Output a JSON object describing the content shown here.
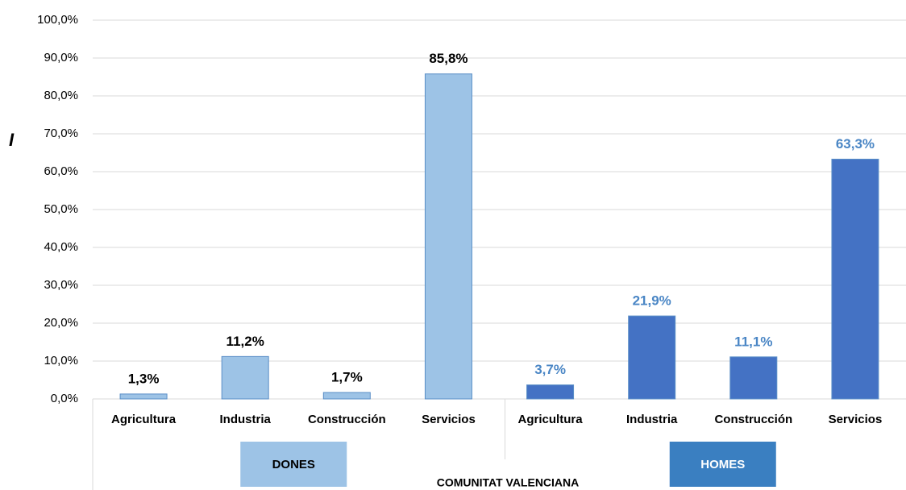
{
  "chart_data": {
    "type": "grouped_bar",
    "ylabel": "I",
    "xlabel": "COMUNITAT VALENCIANA",
    "ylim": [
      0,
      100
    ],
    "yticks": [
      {
        "value": 0,
        "label": "0,0%"
      },
      {
        "value": 10,
        "label": "10,0%"
      },
      {
        "value": 20,
        "label": "20,0%"
      },
      {
        "value": 30,
        "label": "30,0%"
      },
      {
        "value": 40,
        "label": "40,0%"
      },
      {
        "value": 50,
        "label": "50,0%"
      },
      {
        "value": 60,
        "label": "60,0%"
      },
      {
        "value": 70,
        "label": "70,0%"
      },
      {
        "value": 80,
        "label": "80,0%"
      },
      {
        "value": 90,
        "label": "90,0%"
      },
      {
        "value": 100,
        "label": "100,0%"
      }
    ],
    "grid": true,
    "groups": [
      {
        "name": "DONES",
        "color": "#9dc3e6",
        "label_color": "#000000",
        "categories": [
          "Agricultura",
          "Industria",
          "Construcción",
          "Servicios"
        ],
        "values": [
          1.3,
          11.2,
          1.7,
          85.8
        ],
        "value_labels": [
          "1,3%",
          "11,2%",
          "1,7%",
          "85,8%"
        ]
      },
      {
        "name": "HOMES",
        "color": "#4472c4",
        "label_color": "#4a86c5",
        "categories": [
          "Agricultura",
          "Industria",
          "Construcción",
          "Servicios"
        ],
        "values": [
          3.7,
          21.9,
          11.1,
          63.3
        ],
        "value_labels": [
          "3,7%",
          "21,9%",
          "11,1%",
          "63,3%"
        ]
      }
    ]
  }
}
